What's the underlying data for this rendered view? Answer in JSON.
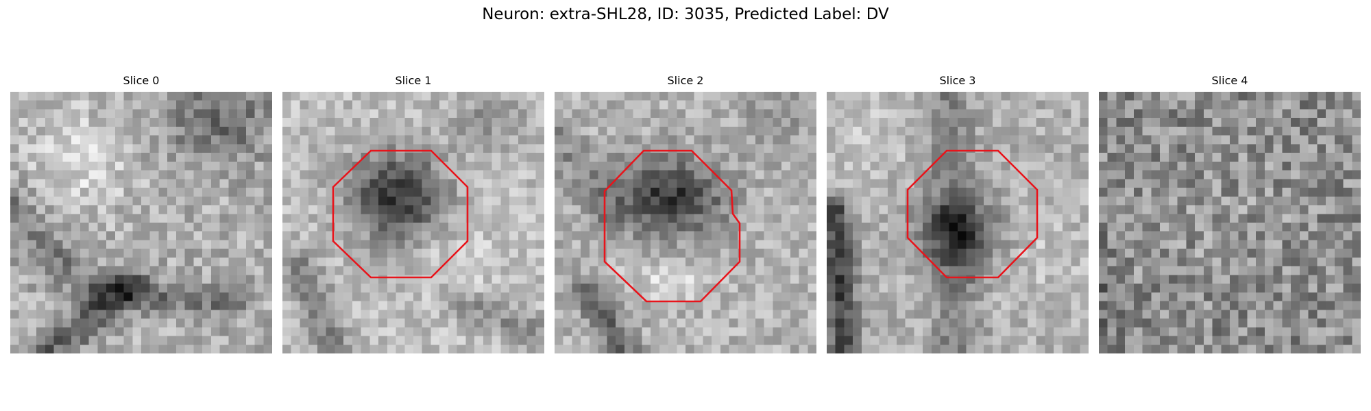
{
  "figure": {
    "title": "Neuron: extra-SHL28, ID: 3035, Predicted Label: DV"
  },
  "panels": [
    {
      "title": "Slice 0",
      "roi": false
    },
    {
      "title": "Slice 1",
      "roi": true
    },
    {
      "title": "Slice 2",
      "roi": true
    },
    {
      "title": "Slice 3",
      "roi": true
    },
    {
      "title": "Slice 4",
      "roi": false
    }
  ],
  "colors": {
    "roi_outline": "#e8141b",
    "background": "#ffffff",
    "colormap": "gray"
  }
}
